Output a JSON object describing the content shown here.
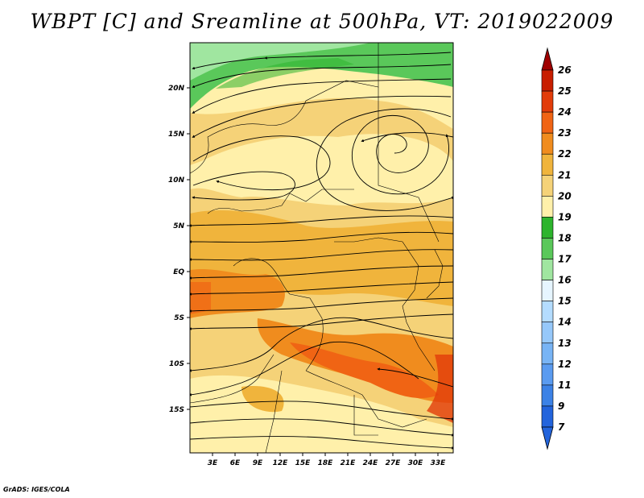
{
  "title": "WBPT [C] and Sreamline at 500hPa, VT: 2019022009",
  "footer": "GrADS: IGES/COLA",
  "map": {
    "latitude_labels": [
      "20N",
      "15N",
      "10N",
      "5N",
      "EQ",
      "5S",
      "10S",
      "15S"
    ],
    "longitude_labels": [
      "3E",
      "6E",
      "9E",
      "12E",
      "15E",
      "18E",
      "21E",
      "24E",
      "27E",
      "30E",
      "33E"
    ],
    "field": "Wet-bulb potential temperature [C]",
    "overlay": "Streamlines at 500hPa",
    "features": [
      "cyclonic circulation center near 25E 14N",
      "warm band 22-23C from 8S-15S"
    ]
  },
  "colorbar": {
    "levels": [
      "26",
      "25",
      "24",
      "23",
      "22",
      "21",
      "20",
      "19",
      "18",
      "17",
      "16",
      "15",
      "14",
      "13",
      "12",
      "11",
      "9",
      "7"
    ],
    "colors": [
      "#a00000",
      "#c81e00",
      "#e23c0a",
      "#f06414",
      "#f08c1e",
      "#f0b43c",
      "#f5d278",
      "#fff0aa",
      "#2db42d",
      "#5ac85a",
      "#a0e6a0",
      "#e6f5ff",
      "#b4dcff",
      "#96c8fa",
      "#78b4f5",
      "#5a9bf0",
      "#3c82e6",
      "#2364dc"
    ]
  }
}
